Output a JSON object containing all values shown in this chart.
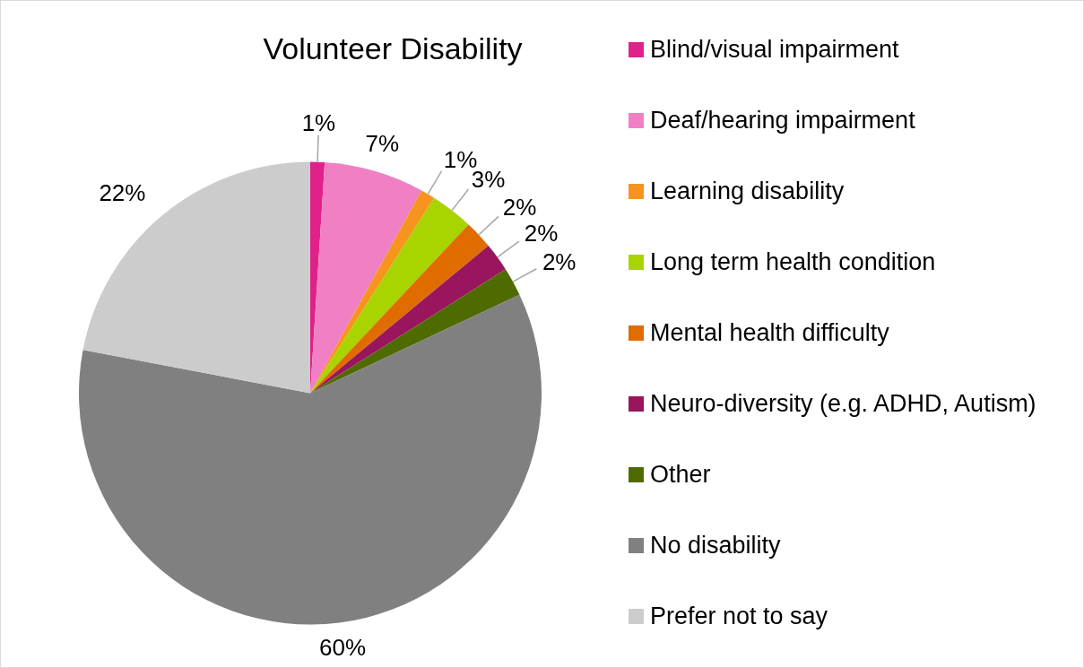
{
  "chart_data": {
    "type": "pie",
    "title": "Volunteer Disability",
    "categories": [
      "Blind/visual impairment",
      "Deaf/hearing impairment",
      "Learning disability",
      "Long term health condition",
      "Mental health difficulty",
      "Neuro-diversity (e.g. ADHD, Autism)",
      "Other",
      "No disability",
      "Prefer not to say"
    ],
    "values": [
      1,
      7,
      1,
      3,
      2,
      2,
      2,
      60,
      22
    ],
    "value_labels": [
      "1%",
      "7%",
      "1%",
      "3%",
      "2%",
      "2%",
      "2%",
      "60%",
      "22%"
    ],
    "colors": [
      "#e0218a",
      "#f07fc4",
      "#f7941d",
      "#a8d400",
      "#e06c00",
      "#99155e",
      "#4f6b00",
      "#808080",
      "#cccccc"
    ],
    "legend": "right"
  }
}
